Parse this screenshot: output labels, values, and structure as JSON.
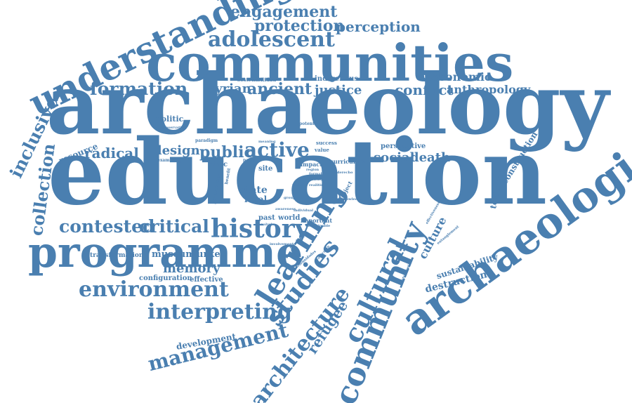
{
  "word_color": "#4a7fb0",
  "background_color": "#ffffff",
  "words": [
    {
      "text": "archaeology",
      "weight": 1.0
    },
    {
      "text": "education",
      "weight": 1.0
    },
    {
      "text": "communities",
      "weight": 0.6
    },
    {
      "text": "programme",
      "weight": 0.55
    },
    {
      "text": "archaeological",
      "weight": 0.6
    },
    {
      "text": "understanding",
      "weight": 0.45
    },
    {
      "text": "community",
      "weight": 0.45
    },
    {
      "text": "learning",
      "weight": 0.4
    },
    {
      "text": "history",
      "weight": 0.35
    },
    {
      "text": "studies",
      "weight": 0.35
    },
    {
      "text": "cultural",
      "weight": 0.35
    },
    {
      "text": "environment",
      "weight": 0.3
    },
    {
      "text": "interpreting",
      "weight": 0.3
    },
    {
      "text": "management",
      "weight": 0.28
    },
    {
      "text": "architecture",
      "weight": 0.3
    },
    {
      "text": "adolescent",
      "weight": 0.28
    },
    {
      "text": "engagement",
      "weight": 0.22
    },
    {
      "text": "protection",
      "weight": 0.22
    },
    {
      "text": "perception",
      "weight": 0.2
    },
    {
      "text": "formation",
      "weight": 0.25
    },
    {
      "text": "ancient",
      "weight": 0.22
    },
    {
      "text": "syrian",
      "weight": 0.18
    },
    {
      "text": "justice",
      "weight": 0.18
    },
    {
      "text": "indigenous",
      "weight": 0.1
    },
    {
      "text": "sostenibilidad",
      "weight": 0.05
    },
    {
      "text": "economic",
      "weight": 0.16
    },
    {
      "text": "conflict",
      "weight": 0.2
    },
    {
      "text": "anthropology",
      "weight": 0.16
    },
    {
      "text": "inclusive",
      "weight": 0.25
    },
    {
      "text": "collection",
      "weight": 0.25
    },
    {
      "text": "resource",
      "weight": 0.12
    },
    {
      "text": "radical",
      "weight": 0.2
    },
    {
      "text": "design",
      "weight": 0.18
    },
    {
      "text": "public",
      "weight": 0.22
    },
    {
      "text": "active",
      "weight": 0.28
    },
    {
      "text": "politic",
      "weight": 0.1
    },
    {
      "text": "preservation",
      "weight": 0.04
    },
    {
      "text": "paradigm",
      "weight": 0.05
    },
    {
      "text": "potential",
      "weight": 0.05
    },
    {
      "text": "perspective",
      "weight": 0.1
    },
    {
      "text": "social",
      "weight": 0.18
    },
    {
      "text": "death",
      "weight": 0.18
    },
    {
      "text": "construction",
      "weight": 0.12
    },
    {
      "text": "textbook",
      "weight": 0.12
    },
    {
      "text": "contested",
      "weight": 0.25
    },
    {
      "text": "critical",
      "weight": 0.25
    },
    {
      "text": "transformation",
      "weight": 0.08
    },
    {
      "text": "museum",
      "weight": 0.13
    },
    {
      "text": "turkey",
      "weight": 0.13
    },
    {
      "text": "memory",
      "weight": 0.18
    },
    {
      "text": "configuration",
      "weight": 0.1
    },
    {
      "text": "effective",
      "weight": 0.1
    },
    {
      "text": "development",
      "weight": 0.12
    },
    {
      "text": "refugee",
      "weight": 0.2
    },
    {
      "text": "culture",
      "weight": 0.16
    },
    {
      "text": "effectiveness",
      "weight": 0.05
    },
    {
      "text": "entanglement",
      "weight": 0.05
    },
    {
      "text": "patrimoniales",
      "weight": 0.05
    },
    {
      "text": "sustainability",
      "weight": 0.12
    },
    {
      "text": "destruction",
      "weight": 0.14
    },
    {
      "text": "ethic",
      "weight": 0.1
    },
    {
      "text": "site",
      "weight": 0.1
    },
    {
      "text": "state",
      "weight": 0.14
    },
    {
      "text": "local",
      "weight": 0.12
    },
    {
      "text": "past",
      "weight": 0.1
    },
    {
      "text": "world",
      "weight": 0.1
    },
    {
      "text": "important",
      "weight": 0.08
    },
    {
      "text": "impact",
      "weight": 0.08
    },
    {
      "text": "value",
      "weight": 0.06
    },
    {
      "text": "success",
      "weight": 0.06
    },
    {
      "text": "curriculum",
      "weight": 0.08
    },
    {
      "text": "project",
      "weight": 0.08
    },
    {
      "text": "knowledge",
      "weight": 0.04
    },
    {
      "text": "identity",
      "weight": 0.04
    },
    {
      "text": "realities",
      "weight": 0.04
    },
    {
      "text": "formal",
      "weight": 0.04
    },
    {
      "text": "derecho",
      "weight": 0.04
    },
    {
      "text": "region",
      "weight": 0.04
    },
    {
      "text": "meaning",
      "weight": 0.04
    },
    {
      "text": "paper",
      "weight": 0.05
    },
    {
      "text": "benefit",
      "weight": 0.05
    },
    {
      "text": "presentation",
      "weight": 0.05
    },
    {
      "text": "examining",
      "weight": 0.05
    },
    {
      "text": "involvement",
      "weight": 0.04
    },
    {
      "text": "economicos",
      "weight": 0.04
    },
    {
      "text": "comunidades",
      "weight": 0.04
    },
    {
      "text": "proteccion",
      "weight": 0.04
    },
    {
      "text": "sustainable",
      "weight": 0.04
    },
    {
      "text": "individual",
      "weight": 0.04
    },
    {
      "text": "awareness",
      "weight": 0.04
    },
    {
      "text": "group",
      "weight": 0.04
    },
    {
      "text": "pitfall",
      "weight": 0.04
    },
    {
      "text": "analysis",
      "weight": 0.04
    }
  ]
}
